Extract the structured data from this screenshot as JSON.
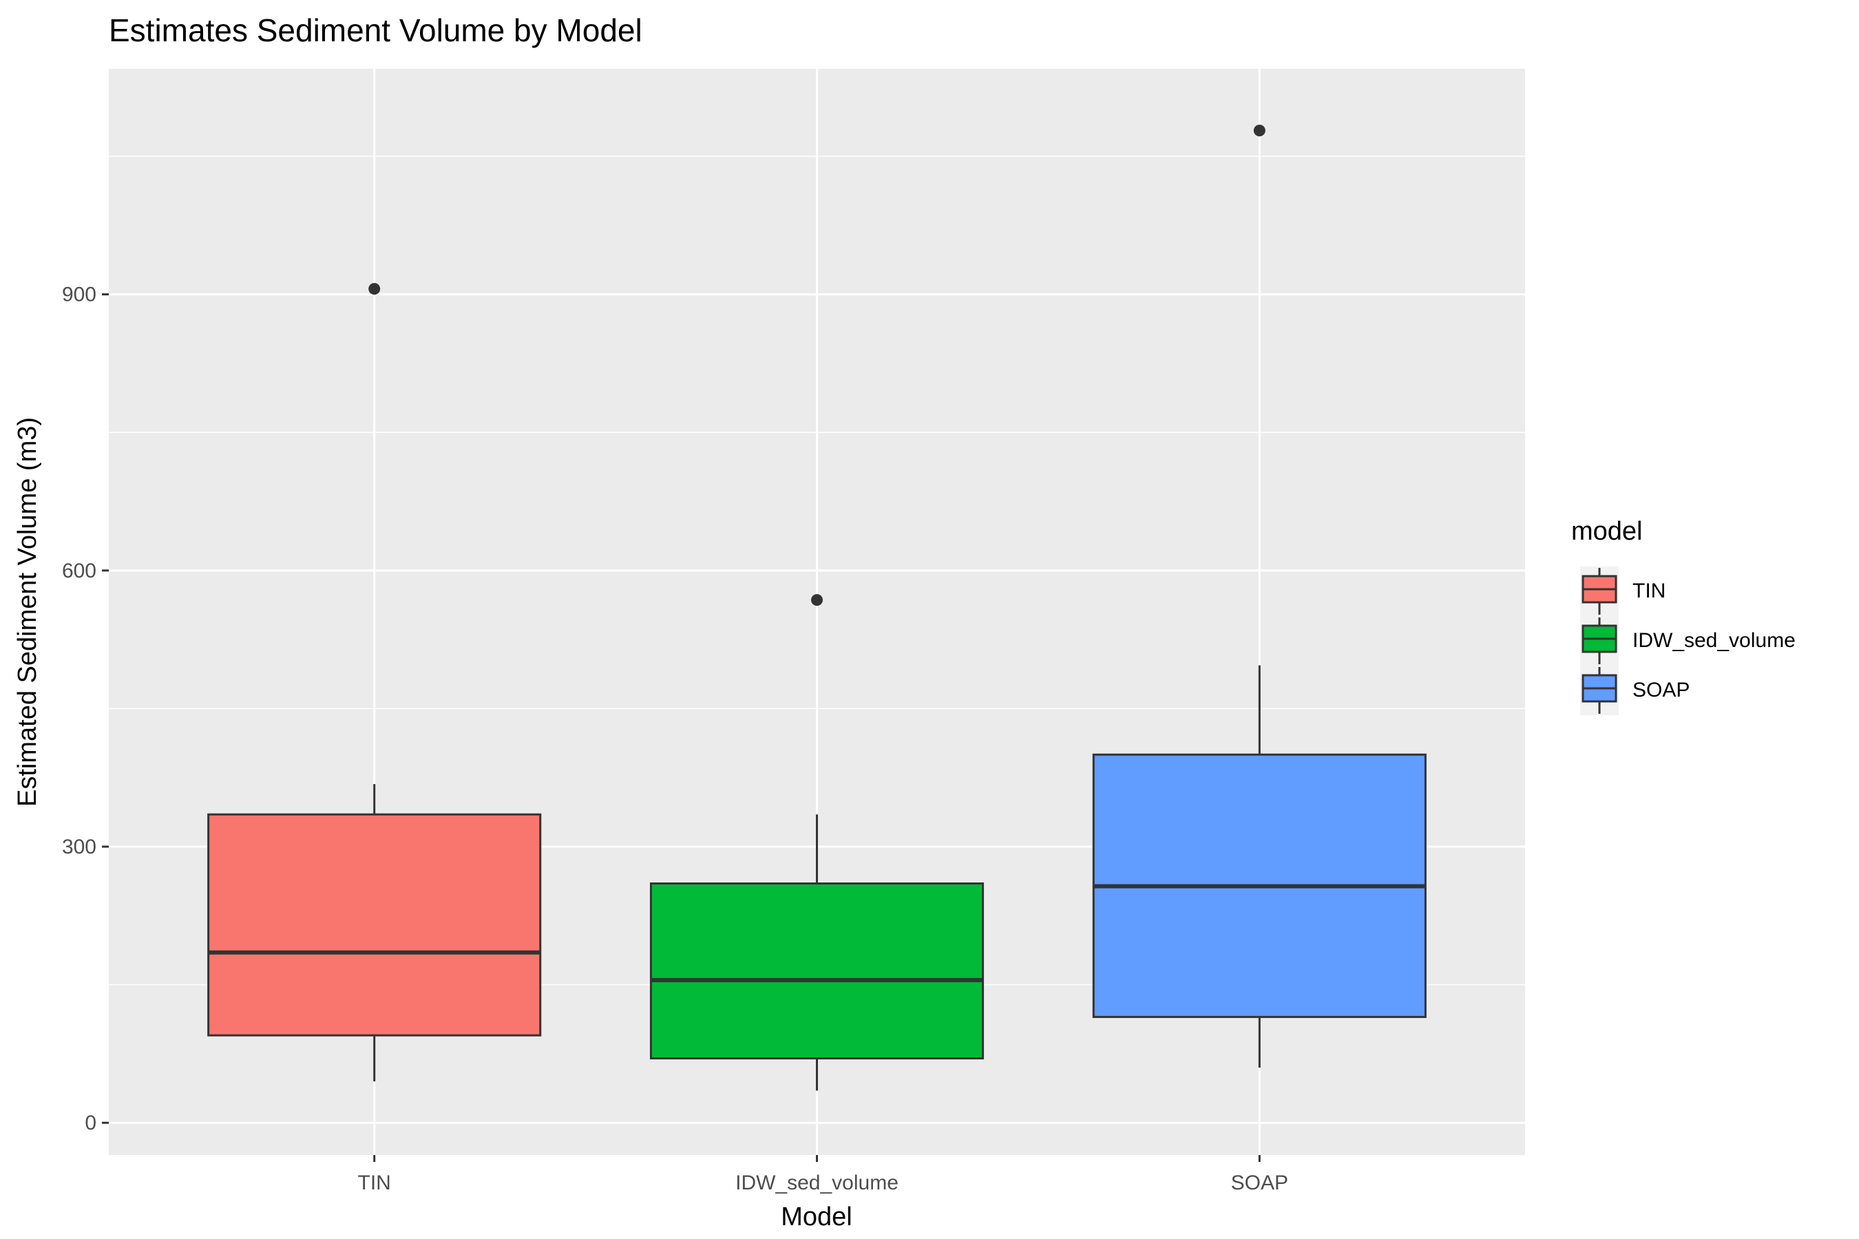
{
  "chart_data": {
    "type": "boxplot",
    "title": "Estimates Sediment Volume by Model",
    "xlabel": "Model",
    "ylabel": "Estimated Sediment Volume (m3)",
    "categories": [
      "TIN",
      "IDW_sed_volume",
      "SOAP"
    ],
    "ylim": [
      -35,
      1145
    ],
    "yticks": [
      0,
      300,
      600,
      900
    ],
    "grid": true,
    "legend": {
      "title": "model",
      "placement": "right",
      "entries": [
        "TIN",
        "IDW_sed_volume",
        "SOAP"
      ]
    },
    "series": [
      {
        "category": "TIN",
        "color": "#F8766D",
        "whisker_low": 45,
        "q1": 95,
        "median": 185,
        "q3": 335,
        "whisker_high": 368,
        "outliers": [
          906
        ]
      },
      {
        "category": "IDW_sed_volume",
        "color": "#00BA38",
        "whisker_low": 35,
        "q1": 70,
        "median": 155,
        "q3": 260,
        "whisker_high": 335,
        "outliers": [
          568
        ]
      },
      {
        "category": "SOAP",
        "color": "#619CFF",
        "whisker_low": 60,
        "q1": 115,
        "median": 257,
        "q3": 400,
        "whisker_high": 497,
        "outliers": [
          1078
        ]
      }
    ]
  }
}
